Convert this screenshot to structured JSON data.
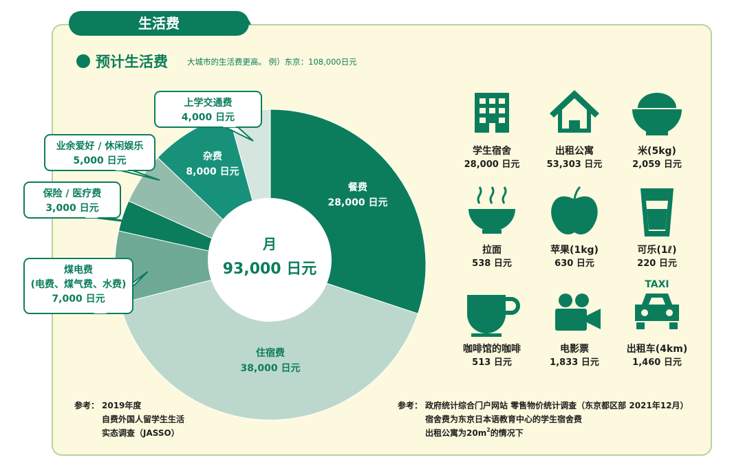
{
  "header": {
    "tab": "生活费",
    "title": "预计生活费",
    "subtitle": "大城市的生活费更高。 例）东京：108,000日元"
  },
  "chart_data": {
    "type": "pie",
    "categories": [
      "餐费",
      "住宿费",
      "煤电费",
      "保险 / 医疗费",
      "业余爱好 / 休闲娱乐",
      "杂费",
      "上学交通费"
    ],
    "category_notes": [
      null,
      null,
      "(电费、煤气费、水费)",
      null,
      null,
      null,
      null
    ],
    "values": [
      28000,
      38000,
      7000,
      3000,
      5000,
      8000,
      4000
    ],
    "value_labels": [
      "28,000 日元",
      "38,000 日元",
      "7,000 日元",
      "3,000 日元",
      "5,000 日元",
      "8,000 日元",
      "4,000 日元"
    ],
    "colors": [
      "#0b7d5c",
      "#bcd8cd",
      "#6ea996",
      "#0b7d5c",
      "#93bcac",
      "#17917a",
      "#d5e6df"
    ],
    "center_title": "月",
    "center_label": "93,000 日元"
  },
  "items": [
    {
      "label": "学生宿舍",
      "price": "28,000 日元"
    },
    {
      "label": "出租公寓",
      "price": "53,303 日元"
    },
    {
      "label": "米(5kg)",
      "price": "2,059 日元"
    },
    {
      "label": "拉面",
      "price": "538 日元"
    },
    {
      "label": "苹果(1kg)",
      "price": "630 日元"
    },
    {
      "label": "可乐(1ℓ)",
      "price": "220 日元"
    },
    {
      "label": "咖啡馆的咖啡",
      "price": "513 日元"
    },
    {
      "label": "电影票",
      "price": "1,833 日元"
    },
    {
      "label": "出租车(4km)",
      "price": "1,460 日元",
      "icon_text": "TAXI"
    }
  ],
  "notes_left": {
    "head": "参考：",
    "lines": [
      "2019年度",
      "自费外国人留学生生活",
      "实态调查（JASSO）"
    ]
  },
  "notes_right": {
    "head": "参考：",
    "lines": [
      "政府统计综合门户网站 零售物价统计调查（东京都区部 2021年12月）",
      "宿舍费为东京日本语教育中心的学生宿舍费"
    ],
    "last": [
      "出租公寓为20m",
      "2",
      "的情况下"
    ]
  }
}
